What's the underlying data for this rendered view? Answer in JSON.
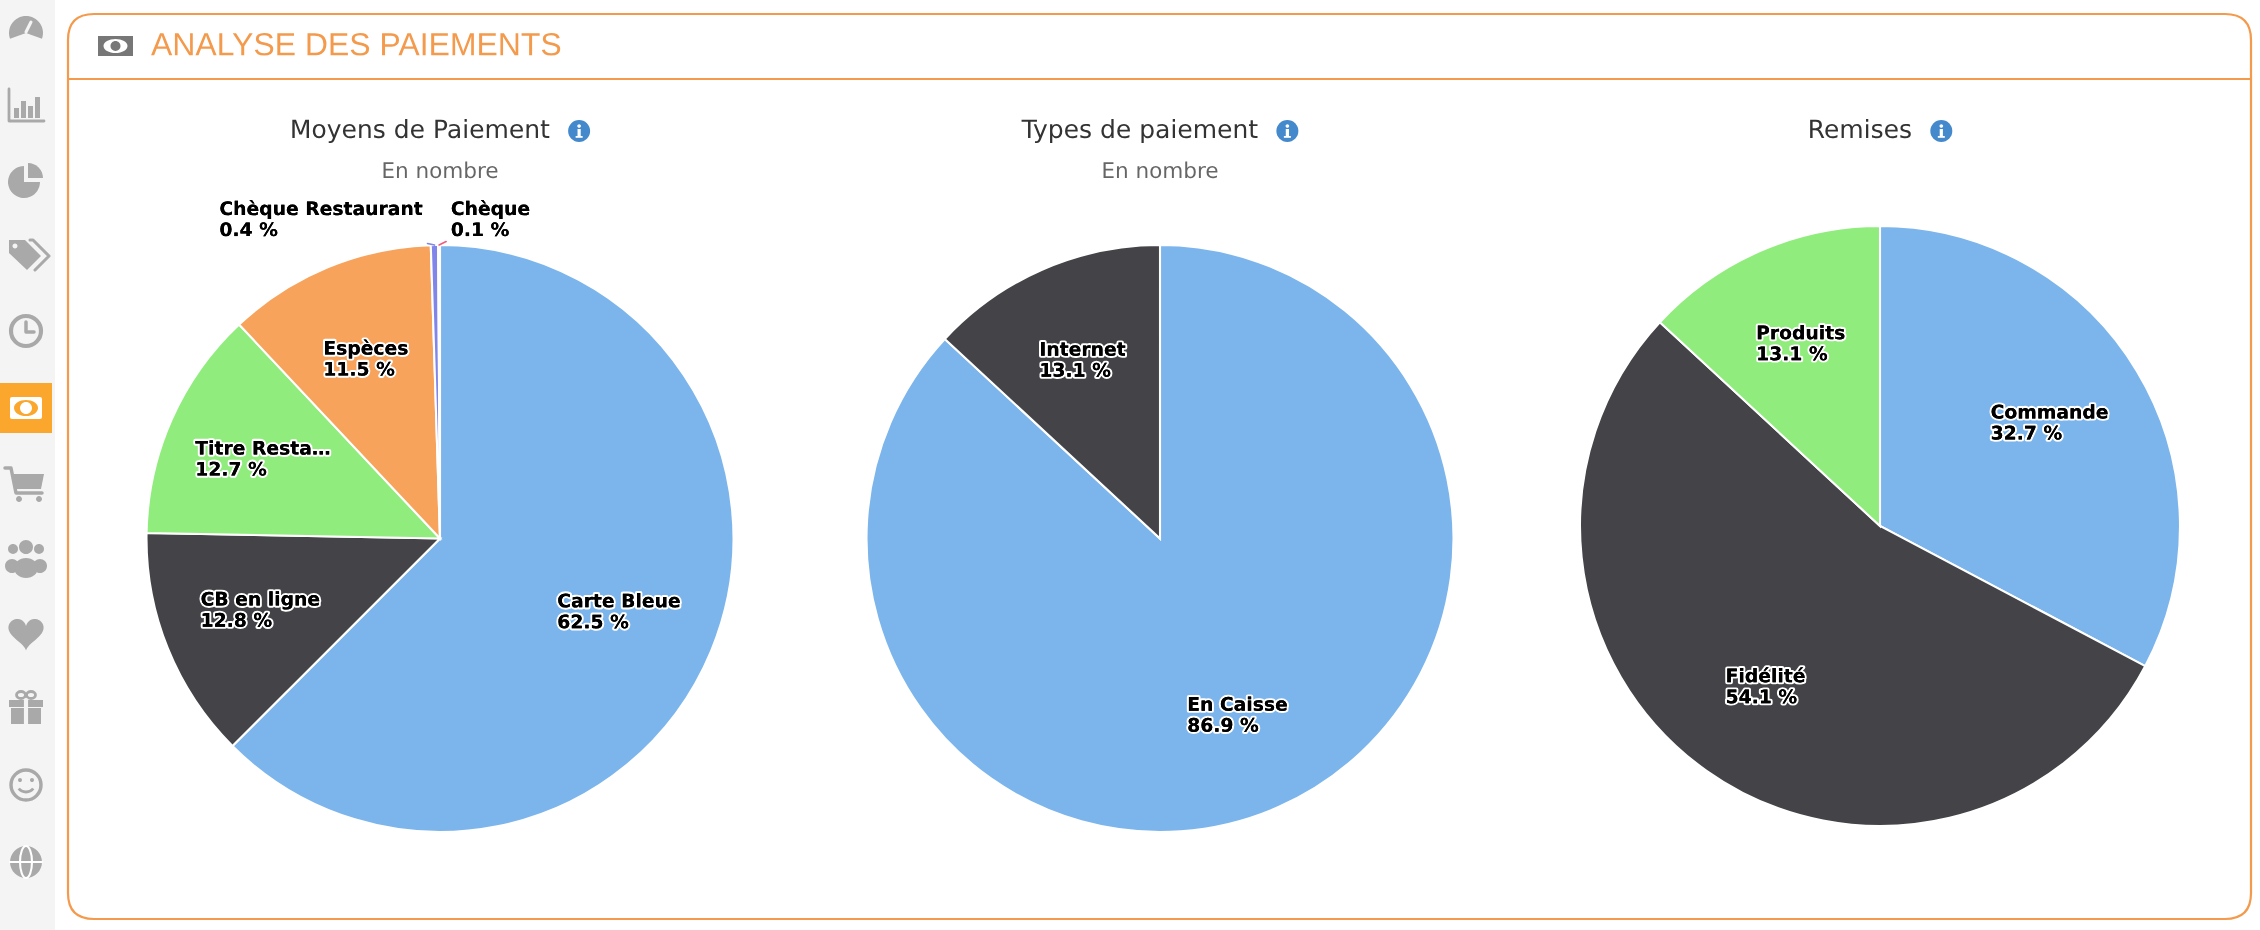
{
  "chart_data": [
    {
      "type": "other",
      "title": "ANALYSE DES PAIEMENTS"
    },
    {
      "type": "pie",
      "title": "Moyens de Paiement",
      "subtitle": "En nombre",
      "categories": [
        "Carte Bleue",
        "CB en ligne",
        "Titre Resta…",
        "Espèces",
        "Chèque Restaurant",
        "Chèque"
      ],
      "values": [
        62.5,
        12.8,
        12.7,
        11.5,
        0.4,
        0.1
      ],
      "value_labels": [
        "62.5 %",
        "12.8 %",
        "12.7 %",
        "11.5 %",
        "0.4 %",
        "0.1 %"
      ],
      "colors": [
        "#7cb5ec",
        "#434348",
        "#90ed7d",
        "#f7a35c",
        "#8085e9",
        "#f15c80"
      ]
    },
    {
      "type": "pie",
      "title": "Types de paiement",
      "subtitle": "En nombre",
      "categories": [
        "En Caisse",
        "Internet"
      ],
      "values": [
        86.9,
        13.1
      ],
      "value_labels": [
        "86.9 %",
        "13.1 %"
      ],
      "colors": [
        "#7cb5ec",
        "#434348"
      ]
    },
    {
      "type": "pie",
      "title": "Remises",
      "categories": [
        "Commande",
        "Fidélité",
        "Produits"
      ],
      "values": [
        32.7,
        54.1,
        13.1
      ],
      "value_labels": [
        "32.7 %",
        "54.1 %",
        "13.1 %"
      ],
      "colors": [
        "#7cb5ec",
        "#434348",
        "#90ed7d"
      ]
    }
  ]
}
